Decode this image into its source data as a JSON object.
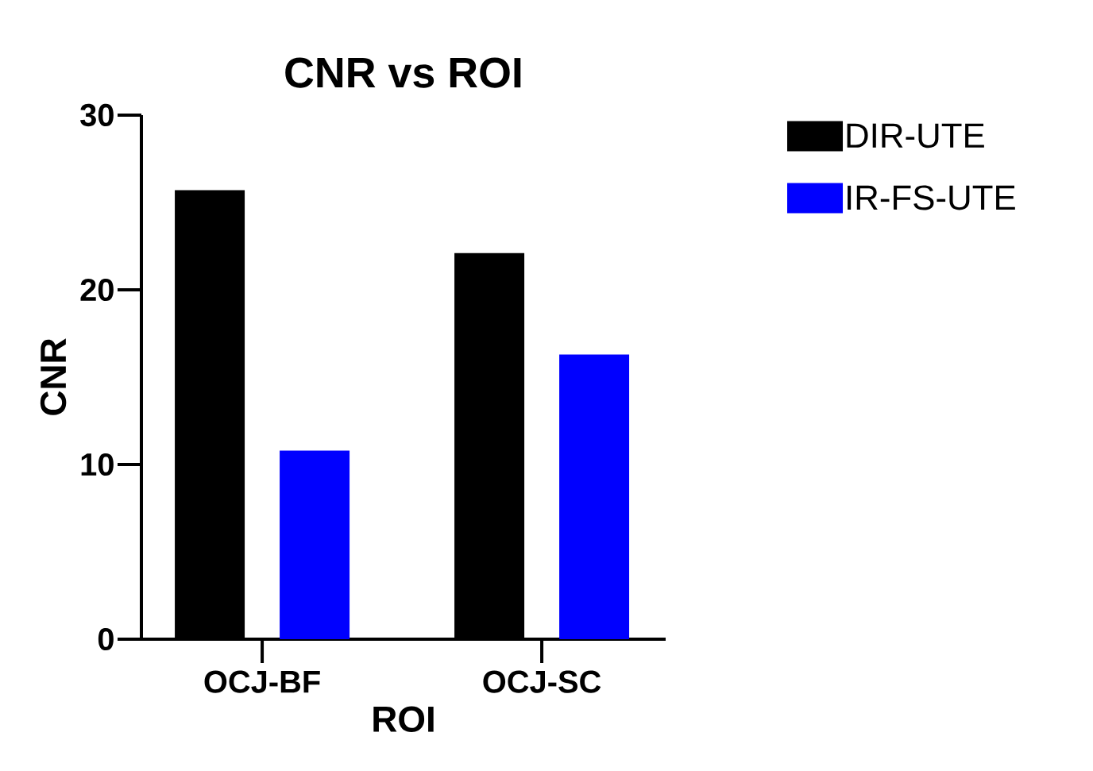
{
  "chart_data": {
    "type": "bar",
    "title": "CNR vs ROI",
    "xlabel": "ROI",
    "ylabel": "CNR",
    "categories": [
      "OCJ-BF",
      "OCJ-SC"
    ],
    "series": [
      {
        "name": "DIR-UTE",
        "color": "#000000",
        "values": [
          25.7,
          22.1
        ]
      },
      {
        "name": "IR-FS-UTE",
        "color": "#0000ff",
        "values": [
          10.8,
          16.3
        ]
      }
    ],
    "ylim": [
      0,
      30
    ],
    "yticks": [
      0,
      10,
      20,
      30
    ],
    "grid": false,
    "legend": "right"
  }
}
